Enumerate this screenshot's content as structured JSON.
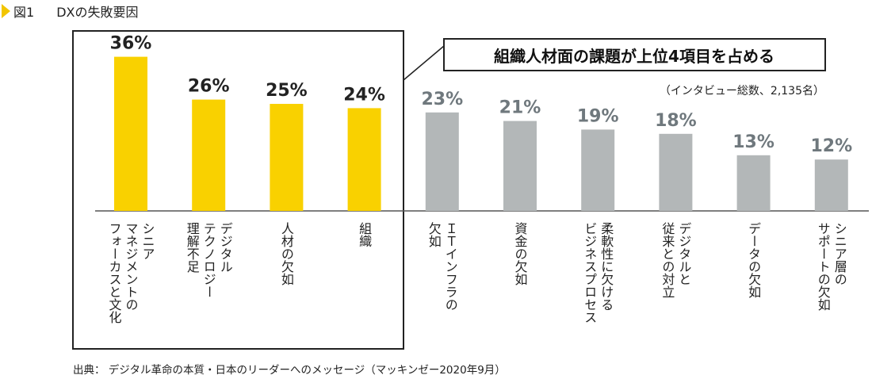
{
  "figure": {
    "number": "図1",
    "title": "DXの失敗要因",
    "source": "出典： デジタル革命の本質・日本のリーダーへのメッセージ（マッキンゼー2020年9月）"
  },
  "colors": {
    "highlight": "#f9d100",
    "other": "#b3b7b8",
    "highlight_label": "#222222",
    "other_label": "#6f787d"
  },
  "chart_data": {
    "type": "bar",
    "title": "DXの失敗要因",
    "annotation": "組織人材面の課題が上位4項目を占める",
    "note": "（インタビュー総数、2,135名）",
    "unit": "%",
    "ylim": [
      0,
      40
    ],
    "grid": false,
    "highlight_count": 4,
    "categories": [
      "シニア マネジメントの フォーカスと文化",
      "デジタル テクノロジー 理解不足",
      "人材の欠如",
      "組織",
      "ＩＴインフラの 欠如",
      "資金の欠如",
      "柔軟性に欠ける ビジネスプロセス",
      "デジタルと 従来との対立",
      "データの欠如",
      "シニア層の サポートの欠如"
    ],
    "category_lines": [
      [
        "シニア",
        "マネジメントの",
        "フォーカスと文化"
      ],
      [
        "デジタル",
        "テクノロジー",
        "理解不足"
      ],
      [
        "人材の欠如"
      ],
      [
        "組織"
      ],
      [
        "ＩＴインフラの",
        "欠如"
      ],
      [
        "資金の欠如"
      ],
      [
        "柔軟性に欠ける",
        "ビジネスプロセス"
      ],
      [
        "デジタルと",
        "従来との対立"
      ],
      [
        "データの欠如"
      ],
      [
        "シニア層の",
        "サポートの欠如"
      ]
    ],
    "values": [
      36,
      26,
      25,
      24,
      23,
      21,
      19,
      18,
      13,
      12
    ],
    "value_labels": [
      "36%",
      "26%",
      "25%",
      "24%",
      "23%",
      "21%",
      "19%",
      "18%",
      "13%",
      "12%"
    ]
  }
}
